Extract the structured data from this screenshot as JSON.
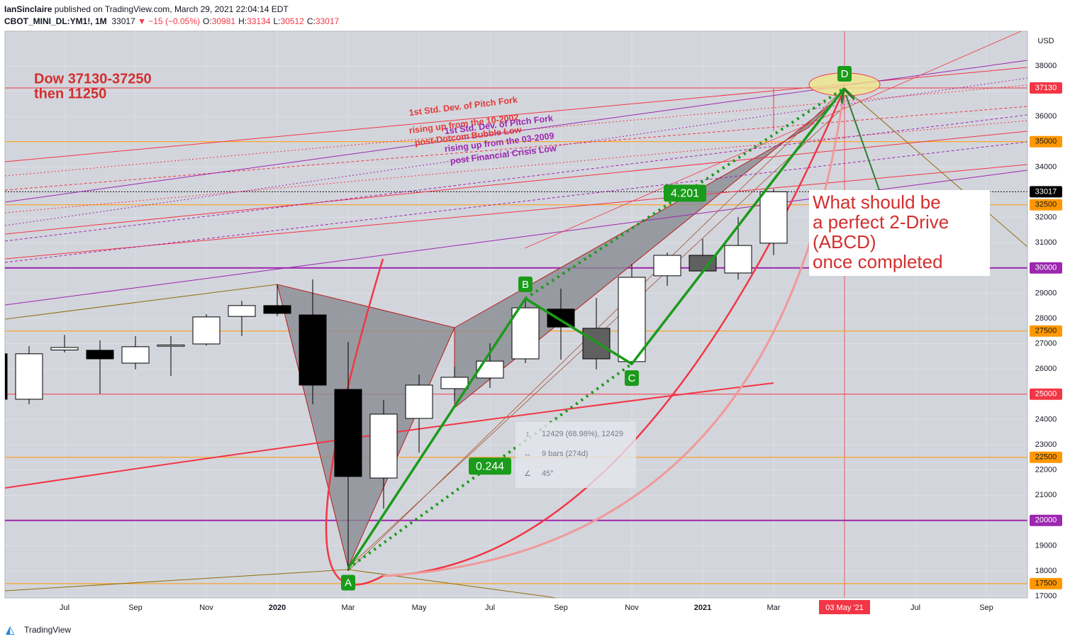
{
  "header": {
    "author": "IanSinclaire",
    "published": "published on TradingView.com, March 29, 2021 22:04:14 EDT",
    "symbol": "CBOT_MINI_DL:YM1!, 1M",
    "last": 33017,
    "change": "▼ −15 (−0.05%)",
    "ohlc": [
      {
        "label": "O:",
        "value": 30981
      },
      {
        "label": "H:",
        "value": 33134
      },
      {
        "label": "L:",
        "value": 30512
      },
      {
        "label": "C:",
        "value": 33017
      }
    ]
  },
  "chart_data": {
    "type": "candlestick",
    "y_label": "USD",
    "categories": [
      null,
      null,
      "Jul",
      null,
      "Sep",
      null,
      "Nov",
      null,
      "2020",
      null,
      "Mar",
      null,
      "May",
      null,
      "Jul",
      null,
      "Sep",
      null,
      "Nov",
      null,
      "2021",
      null,
      "Mar",
      null,
      "03 May '21",
      null,
      "Jul",
      null,
      "Sep"
    ],
    "crosshair_index": 24,
    "open": [
      26600,
      24800,
      26750,
      26740,
      26230,
      26900,
      26990,
      28080,
      28510,
      28140,
      25190,
      21680,
      24040,
      25220,
      25640,
      26400,
      28370,
      27610,
      26290,
      29690,
      30500,
      29800,
      30981,
      null,
      null,
      null,
      null,
      null,
      null
    ],
    "high": [
      26700,
      26900,
      27350,
      27130,
      27300,
      27300,
      28170,
      28700,
      29350,
      29550,
      27070,
      24770,
      25780,
      26090,
      27020,
      28810,
      29180,
      28810,
      30160,
      30610,
      31150,
      32020,
      33134,
      null,
      null,
      null,
      null,
      null,
      null
    ],
    "low": [
      24600,
      24600,
      26650,
      25020,
      25980,
      25720,
      26930,
      27300,
      28100,
      24600,
      18000,
      20470,
      22690,
      24710,
      25250,
      26230,
      26370,
      25980,
      26150,
      29290,
      29800,
      29540,
      30512,
      null,
      null,
      null,
      null,
      null,
      null
    ],
    "close": [
      24800,
      26600,
      26850,
      26400,
      26880,
      26950,
      28060,
      28510,
      28200,
      25360,
      21740,
      24210,
      25360,
      25670,
      26310,
      28420,
      27660,
      26400,
      29630,
      30500,
      29880,
      30890,
      33017,
      null,
      null,
      null,
      null,
      null,
      null
    ],
    "colors": [
      "#000000",
      "#ffffff",
      "#ffffff",
      "#000000",
      "#ffffff",
      "#ffffff",
      "#ffffff",
      "#ffffff",
      "#000000",
      "#000000",
      "#000000",
      "#ffffff",
      "#ffffff",
      "#ffffff",
      "#ffffff",
      "#ffffff",
      "#000000",
      "#606060",
      "#ffffff",
      "#ffffff",
      "#606060",
      "#ffffff",
      "#ffffff",
      null,
      null,
      null,
      null,
      null,
      null
    ],
    "ylim": [
      16933,
      39376
    ],
    "yticks": [
      17000,
      18000,
      19000,
      20000,
      21000,
      22000,
      23000,
      24000,
      25000,
      26000,
      27000,
      28000,
      29000,
      30000,
      31000,
      32000,
      33000,
      34000,
      35000,
      36000,
      37000,
      38000
    ],
    "levels": [
      {
        "value": 37130,
        "color": "#f23645"
      },
      {
        "value": 35000,
        "color": "#ff9800"
      },
      {
        "value": 33017,
        "color": "#000000"
      },
      {
        "value": 32500,
        "color": "#ff9800"
      },
      {
        "value": 30000,
        "color": "#9c27b0"
      },
      {
        "value": 27500,
        "color": "#ff9800"
      },
      {
        "value": 25000,
        "color": "#f23645"
      },
      {
        "value": 22500,
        "color": "#ff9800"
      },
      {
        "value": 20000,
        "color": "#9c27b0"
      },
      {
        "value": 17500,
        "color": "#ff9800"
      }
    ],
    "pattern": {
      "color": "#089981",
      "points": [
        {
          "label": "A",
          "index": 10,
          "value": 18100
        },
        {
          "label": "B",
          "index": 15,
          "value": 28790
        },
        {
          "label": "C",
          "index": 18,
          "value": 26200
        },
        {
          "label": "D",
          "index": 24,
          "value": 37130
        }
      ],
      "ratios": [
        4.201,
        0.244
      ]
    },
    "measure": [
      "12429 (68.98%), 12429",
      "9 bars (274d)",
      "45°"
    ],
    "annotations": {
      "target": [
        "Dow 37130-37250",
        "then 11250"
      ],
      "note": [
        "What should be",
        "a perfect 2-Drive",
        "(ABCD)",
        "once completed"
      ],
      "fork1": [
        "1st Std. Dev. of Pitch Fork",
        "rising up from the 10-2002",
        "post-Dotcom Bubble Low"
      ],
      "fork2": [
        "1st Std. Dev. of Pitch Fork",
        "rising up from the 03-2009",
        "post Financial Crisis Low"
      ]
    }
  },
  "footer": "TradingView"
}
